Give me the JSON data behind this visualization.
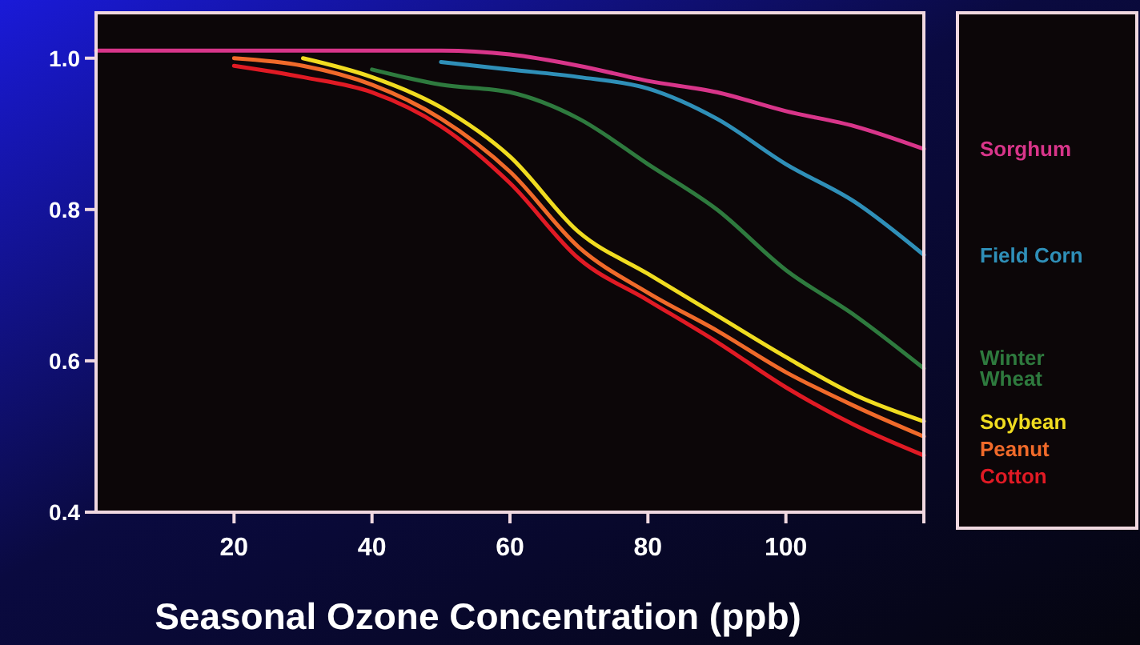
{
  "chart_data": {
    "type": "line",
    "xlabel": "Seasonal Ozone Concentration (ppb)",
    "xlim": [
      0,
      120
    ],
    "ylim": [
      0.4,
      1.06
    ],
    "xticks": [
      20,
      40,
      60,
      80,
      100,
      {
        "value": 120,
        "label": null
      }
    ],
    "yticks": [
      {
        "value": 0.4,
        "label": "0.4"
      },
      {
        "value": 0.6,
        "label": "0.6"
      },
      {
        "value": 0.8,
        "label": "0.8"
      },
      {
        "value": 1,
        "label": "1.0"
      }
    ],
    "x": [
      0,
      10,
      20,
      30,
      40,
      50,
      60,
      70,
      80,
      90,
      100,
      110,
      120
    ],
    "legend": "right",
    "grid": false,
    "marker": "none",
    "line_style": "solid",
    "series": [
      {
        "name": "Sorghum",
        "color": "#d8358a",
        "values": [
          1.01,
          1.01,
          1.01,
          1.01,
          1.01,
          1.01,
          1.005,
          0.99,
          0.97,
          0.955,
          0.93,
          0.91,
          0.88
        ]
      },
      {
        "name": "Field Corn",
        "color": "#2f8fb8",
        "values": [
          null,
          null,
          null,
          null,
          null,
          0.995,
          0.985,
          0.975,
          0.96,
          0.92,
          0.86,
          0.81,
          0.74
        ]
      },
      {
        "name": "Winter Wheat",
        "color": "#2e7a3e",
        "values": [
          null,
          null,
          null,
          null,
          0.985,
          0.965,
          0.955,
          0.92,
          0.86,
          0.8,
          0.72,
          0.66,
          0.59
        ]
      },
      {
        "name": "Soybean",
        "color": "#f0dc20",
        "values": [
          null,
          null,
          null,
          1.0,
          0.975,
          0.935,
          0.87,
          0.77,
          0.715,
          0.66,
          0.605,
          0.555,
          0.52
        ]
      },
      {
        "name": "Peanut",
        "color": "#f06a2a",
        "values": [
          null,
          null,
          1.0,
          0.99,
          0.965,
          0.92,
          0.85,
          0.75,
          0.69,
          0.64,
          0.585,
          0.54,
          0.5
        ]
      },
      {
        "name": "Cotton",
        "color": "#e01a24",
        "values": [
          null,
          null,
          0.99,
          0.975,
          0.955,
          0.91,
          0.835,
          0.735,
          0.68,
          0.625,
          0.565,
          0.515,
          0.475
        ]
      }
    ]
  }
}
